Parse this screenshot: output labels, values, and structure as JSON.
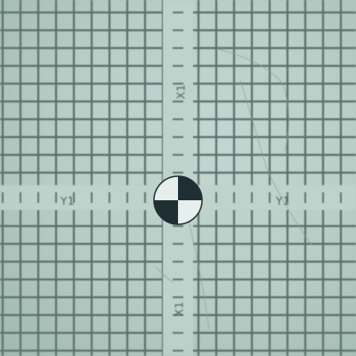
{
  "scene": {
    "description_colors": {
      "background": "#b9cec8",
      "grid_line": "#4a5e5a",
      "target_dark": "#1f2f33",
      "target_light": "#e6efec"
    }
  },
  "labels": {
    "x1_top": "X1",
    "x1_bottom": "X1",
    "y1_left": "Y1",
    "y1_right": "Y1"
  }
}
